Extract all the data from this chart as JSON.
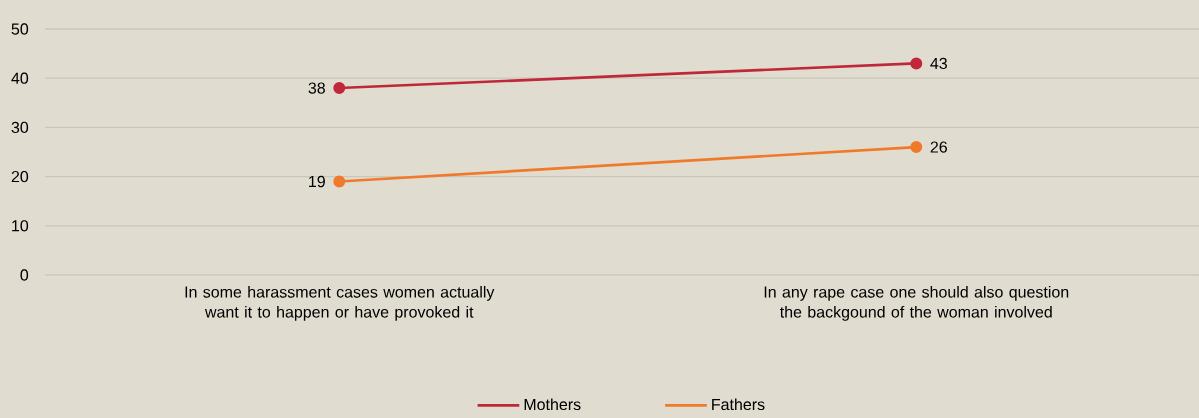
{
  "chart_data": {
    "type": "line",
    "categories": [
      "In some harassment cases women actually want it to happen or have provoked it",
      "In any rape case one should also question the backgound of the woman involved"
    ],
    "series": [
      {
        "name": "Mothers",
        "color": "#c0283a",
        "values": [
          38,
          43
        ]
      },
      {
        "name": "Fathers",
        "color": "#f07a2a",
        "values": [
          19,
          26
        ]
      }
    ],
    "ylim": [
      0,
      50
    ],
    "yticks": [
      0,
      10,
      20,
      30,
      40,
      50
    ],
    "grid": "y",
    "legend": "bottom",
    "marker": "circle",
    "line_style": "solid",
    "data_labels": true
  }
}
